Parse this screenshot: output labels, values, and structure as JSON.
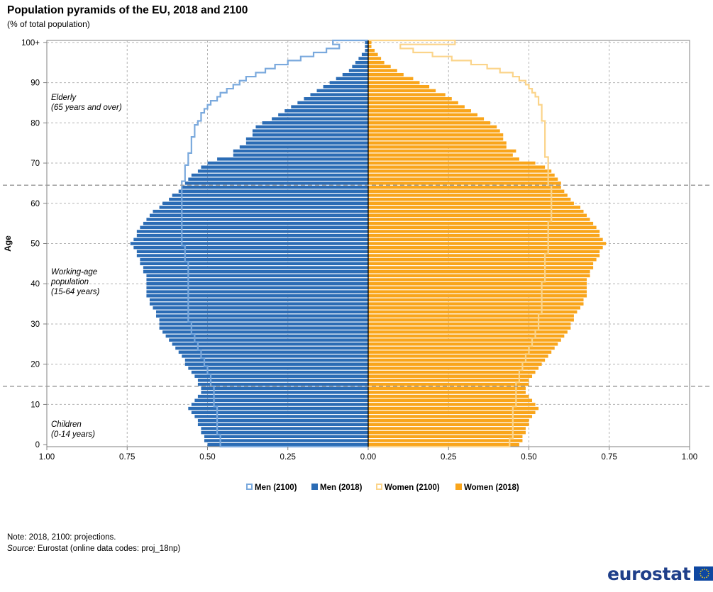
{
  "title": "Population pyramids of the EU, 2018 and 2100",
  "subtitle": "(% of total population)",
  "note": "Note: 2018, 2100: projections.",
  "source_label": "Source:",
  "source_text": "Eurostat (online data codes: proj_18np)",
  "logo_text": "eurostat",
  "colors": {
    "men_2018": "#2b6cb5",
    "men_2100": "#7aa9dd",
    "women_2018": "#f9a51b",
    "women_2100": "#fbd48a"
  },
  "chart_data": {
    "type": "bar",
    "orientation": "horizontal-pyramid",
    "ylabel": "Age",
    "y_ticks": [
      "0",
      "10",
      "20",
      "30",
      "40",
      "50",
      "60",
      "70",
      "80",
      "90",
      "100+"
    ],
    "x_ticks": [
      "1.00",
      "0.75",
      "0.50",
      "0.25",
      "0.00",
      "0.25",
      "0.50",
      "0.75",
      "1.00"
    ],
    "xlim": [
      -1.0,
      1.0
    ],
    "age_groups": [
      {
        "age": 0,
        "label": "0"
      },
      {
        "age": 100,
        "label": "100+"
      }
    ],
    "ages": [
      0,
      1,
      2,
      3,
      4,
      5,
      6,
      7,
      8,
      9,
      10,
      11,
      12,
      13,
      14,
      15,
      16,
      17,
      18,
      19,
      20,
      21,
      22,
      23,
      24,
      25,
      26,
      27,
      28,
      29,
      30,
      31,
      32,
      33,
      34,
      35,
      36,
      37,
      38,
      39,
      40,
      41,
      42,
      43,
      44,
      45,
      46,
      47,
      48,
      49,
      50,
      51,
      52,
      53,
      54,
      55,
      56,
      57,
      58,
      59,
      60,
      61,
      62,
      63,
      64,
      65,
      66,
      67,
      68,
      69,
      70,
      71,
      72,
      73,
      74,
      75,
      76,
      77,
      78,
      79,
      80,
      81,
      82,
      83,
      84,
      85,
      86,
      87,
      88,
      89,
      90,
      91,
      92,
      93,
      94,
      95,
      96,
      97,
      98,
      99,
      100
    ],
    "series": [
      {
        "name": "Men (2100)",
        "color_key": "men_2100",
        "style": "outline",
        "side": "left",
        "values": [
          0.46,
          0.46,
          0.46,
          0.47,
          0.47,
          0.47,
          0.47,
          0.47,
          0.47,
          0.47,
          0.48,
          0.48,
          0.48,
          0.48,
          0.48,
          0.49,
          0.49,
          0.49,
          0.5,
          0.5,
          0.51,
          0.51,
          0.52,
          0.52,
          0.53,
          0.53,
          0.54,
          0.54,
          0.55,
          0.55,
          0.55,
          0.56,
          0.56,
          0.56,
          0.56,
          0.56,
          0.56,
          0.56,
          0.56,
          0.56,
          0.56,
          0.56,
          0.56,
          0.56,
          0.56,
          0.56,
          0.57,
          0.57,
          0.57,
          0.57,
          0.58,
          0.58,
          0.58,
          0.58,
          0.58,
          0.58,
          0.58,
          0.58,
          0.58,
          0.58,
          0.58,
          0.58,
          0.58,
          0.58,
          0.58,
          0.58,
          0.57,
          0.57,
          0.57,
          0.57,
          0.56,
          0.56,
          0.56,
          0.55,
          0.55,
          0.55,
          0.55,
          0.54,
          0.54,
          0.54,
          0.53,
          0.52,
          0.52,
          0.51,
          0.5,
          0.49,
          0.47,
          0.46,
          0.44,
          0.42,
          0.4,
          0.38,
          0.35,
          0.32,
          0.29,
          0.25,
          0.21,
          0.17,
          0.13,
          0.09,
          0.11
        ]
      },
      {
        "name": "Men (2018)",
        "color_key": "men_2018",
        "style": "filled",
        "side": "left",
        "values": [
          0.5,
          0.51,
          0.51,
          0.52,
          0.52,
          0.53,
          0.53,
          0.54,
          0.55,
          0.56,
          0.55,
          0.54,
          0.53,
          0.52,
          0.52,
          0.53,
          0.53,
          0.54,
          0.55,
          0.56,
          0.57,
          0.57,
          0.58,
          0.59,
          0.6,
          0.61,
          0.62,
          0.63,
          0.64,
          0.65,
          0.65,
          0.65,
          0.66,
          0.66,
          0.67,
          0.68,
          0.68,
          0.69,
          0.69,
          0.69,
          0.69,
          0.69,
          0.69,
          0.7,
          0.7,
          0.71,
          0.71,
          0.72,
          0.72,
          0.73,
          0.74,
          0.73,
          0.72,
          0.72,
          0.71,
          0.7,
          0.69,
          0.68,
          0.67,
          0.65,
          0.64,
          0.62,
          0.61,
          0.59,
          0.58,
          0.57,
          0.56,
          0.55,
          0.53,
          0.52,
          0.5,
          0.47,
          0.42,
          0.42,
          0.4,
          0.38,
          0.38,
          0.36,
          0.36,
          0.35,
          0.33,
          0.3,
          0.28,
          0.26,
          0.24,
          0.22,
          0.2,
          0.18,
          0.16,
          0.14,
          0.12,
          0.1,
          0.08,
          0.06,
          0.05,
          0.04,
          0.03,
          0.02,
          0.01,
          0.01,
          0.01
        ]
      },
      {
        "name": "Women (2100)",
        "color_key": "women_2100",
        "style": "outline",
        "side": "right",
        "values": [
          0.44,
          0.44,
          0.45,
          0.45,
          0.45,
          0.45,
          0.45,
          0.45,
          0.45,
          0.45,
          0.46,
          0.46,
          0.46,
          0.46,
          0.46,
          0.46,
          0.47,
          0.47,
          0.47,
          0.48,
          0.48,
          0.49,
          0.49,
          0.5,
          0.5,
          0.51,
          0.51,
          0.52,
          0.52,
          0.53,
          0.53,
          0.53,
          0.53,
          0.54,
          0.54,
          0.54,
          0.54,
          0.54,
          0.54,
          0.54,
          0.54,
          0.55,
          0.55,
          0.55,
          0.55,
          0.55,
          0.55,
          0.55,
          0.56,
          0.56,
          0.56,
          0.56,
          0.56,
          0.56,
          0.56,
          0.56,
          0.57,
          0.57,
          0.57,
          0.57,
          0.57,
          0.57,
          0.57,
          0.57,
          0.57,
          0.56,
          0.56,
          0.56,
          0.56,
          0.56,
          0.56,
          0.56,
          0.55,
          0.55,
          0.55,
          0.55,
          0.55,
          0.55,
          0.55,
          0.55,
          0.55,
          0.54,
          0.54,
          0.54,
          0.54,
          0.53,
          0.53,
          0.52,
          0.51,
          0.5,
          0.49,
          0.47,
          0.45,
          0.41,
          0.37,
          0.32,
          0.26,
          0.2,
          0.14,
          0.1,
          0.27
        ]
      },
      {
        "name": "Women (2018)",
        "color_key": "women_2018",
        "style": "filled",
        "side": "right",
        "values": [
          0.47,
          0.48,
          0.48,
          0.49,
          0.49,
          0.5,
          0.5,
          0.51,
          0.52,
          0.53,
          0.52,
          0.51,
          0.5,
          0.49,
          0.49,
          0.5,
          0.5,
          0.51,
          0.52,
          0.53,
          0.54,
          0.55,
          0.56,
          0.57,
          0.58,
          0.59,
          0.6,
          0.61,
          0.62,
          0.63,
          0.63,
          0.64,
          0.64,
          0.65,
          0.66,
          0.67,
          0.67,
          0.68,
          0.68,
          0.68,
          0.68,
          0.68,
          0.69,
          0.69,
          0.7,
          0.7,
          0.71,
          0.72,
          0.72,
          0.73,
          0.74,
          0.73,
          0.72,
          0.72,
          0.71,
          0.7,
          0.69,
          0.68,
          0.67,
          0.66,
          0.64,
          0.63,
          0.62,
          0.61,
          0.6,
          0.6,
          0.59,
          0.58,
          0.57,
          0.55,
          0.52,
          0.47,
          0.45,
          0.46,
          0.43,
          0.43,
          0.42,
          0.42,
          0.41,
          0.4,
          0.38,
          0.36,
          0.34,
          0.32,
          0.3,
          0.28,
          0.26,
          0.24,
          0.21,
          0.19,
          0.16,
          0.14,
          0.11,
          0.09,
          0.07,
          0.05,
          0.04,
          0.03,
          0.02,
          0.01,
          0.01
        ]
      }
    ],
    "threshold_lines": [
      14,
      64
    ],
    "annotations": [
      {
        "lines": [
          "Elderly",
          "(65 years and over)"
        ],
        "band": "elderly"
      },
      {
        "lines": [
          "Working-age",
          "population",
          "(15-64 years)"
        ],
        "band": "working"
      },
      {
        "lines": [
          "Children",
          "(0-14 years)"
        ],
        "band": "children"
      }
    ],
    "legend_position": "bottom",
    "grid": true
  }
}
